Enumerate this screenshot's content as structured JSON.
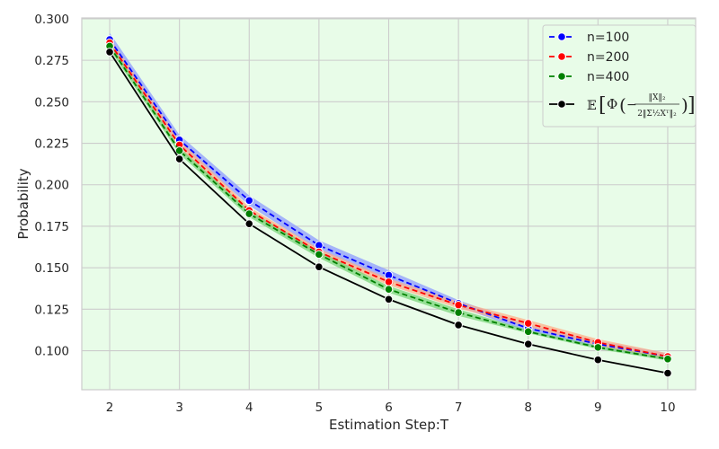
{
  "chart_data": {
    "type": "line",
    "title": "",
    "xlabel": "Estimation Step:T",
    "ylabel": "Probability",
    "x": [
      2,
      3,
      4,
      5,
      6,
      7,
      8,
      9,
      10
    ],
    "xlim": [
      1.6,
      10.4
    ],
    "ylim": [
      0.0765,
      0.3005
    ],
    "xticks": [
      "2",
      "3",
      "4",
      "5",
      "6",
      "7",
      "8",
      "9",
      "10"
    ],
    "yticks": [
      0.1,
      0.125,
      0.15,
      0.175,
      0.2,
      0.225,
      0.25,
      0.275,
      0.3
    ],
    "ytick_labels": [
      "0.100",
      "0.125",
      "0.150",
      "0.175",
      "0.200",
      "0.225",
      "0.250",
      "0.275",
      "0.300"
    ],
    "grid": true,
    "legend_position": "top-right",
    "plot_background": "#e8fce8",
    "series": [
      {
        "name": "n=100",
        "style": "dashed",
        "color": "#0000ff",
        "band_color": "#8f9cff",
        "values": [
          0.2875,
          0.227,
          0.1905,
          0.1635,
          0.1455,
          0.1285,
          0.1135,
          0.104,
          0.0965
        ],
        "band": [
          0.004,
          0.003,
          0.003,
          0.003,
          0.003,
          0.002,
          0.002,
          0.002,
          0.002
        ]
      },
      {
        "name": "n=200",
        "style": "dashed",
        "color": "#ff0000",
        "band_color": "#ffb08a",
        "values": [
          0.2855,
          0.224,
          0.1845,
          0.1595,
          0.1415,
          0.1275,
          0.1165,
          0.105,
          0.0965
        ],
        "band": [
          0.003,
          0.003,
          0.002,
          0.002,
          0.002,
          0.002,
          0.002,
          0.002,
          0.002
        ]
      },
      {
        "name": "n=400",
        "style": "dashed",
        "color": "#008000",
        "band_color": "#7bd67b",
        "values": [
          0.2835,
          0.2205,
          0.1825,
          0.158,
          0.137,
          0.123,
          0.1115,
          0.102,
          0.095
        ],
        "band": [
          0.002,
          0.002,
          0.002,
          0.002,
          0.002,
          0.002,
          0.001,
          0.001,
          0.001
        ]
      },
      {
        "name": "E[Φ(−‖X‖₂ / 2‖Σ^{1/2}X_T‖₂)]",
        "style": "solid",
        "color": "#000000",
        "values": [
          0.28,
          0.2155,
          0.1765,
          0.1505,
          0.131,
          0.1155,
          0.104,
          0.0945,
          0.0865
        ]
      }
    ]
  }
}
